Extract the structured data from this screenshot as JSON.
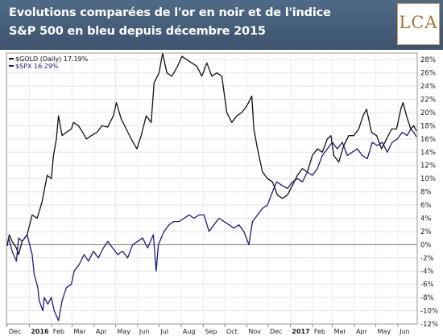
{
  "header": {
    "title_line1": "Evolutions comparées de l'or en noir et de l'indice",
    "title_line2": "S&P 500 en bleu depuis décembre 2015",
    "logo_text": "LCA"
  },
  "colors": {
    "header_bg": "#46607d",
    "gold_line": "#111111",
    "spx_line": "#1c1c7a",
    "logo_color": "#a07a38"
  },
  "chart_data": {
    "type": "line",
    "y_unit": "%",
    "ylim": [
      -12,
      29
    ],
    "yticks": [
      -12,
      -10,
      -8,
      -6,
      -4,
      -2,
      0,
      2,
      4,
      6,
      8,
      10,
      12,
      14,
      16,
      18,
      20,
      22,
      24,
      26,
      28
    ],
    "ytick_labels": [
      "-12%",
      "-10%",
      "-8%",
      "-6%",
      "-4%",
      "-2%",
      "0%",
      "2%",
      "4%",
      "6%",
      "8%",
      "10%",
      "12%",
      "14%",
      "16%",
      "18%",
      "20%",
      "22%",
      "24%",
      "26%",
      "28%"
    ],
    "xlim": [
      "2015-11-30",
      "2017-06-28"
    ],
    "x_ticks": [
      {
        "date": "2015-12-01",
        "label": "Dec",
        "bold": false
      },
      {
        "date": "2016-01-01",
        "label": "2016",
        "bold": true
      },
      {
        "date": "2016-02-01",
        "label": "Feb",
        "bold": false
      },
      {
        "date": "2016-03-01",
        "label": "Mar",
        "bold": false
      },
      {
        "date": "2016-04-01",
        "label": "Apr",
        "bold": false
      },
      {
        "date": "2016-05-01",
        "label": "May",
        "bold": false
      },
      {
        "date": "2016-06-01",
        "label": "Jun",
        "bold": false
      },
      {
        "date": "2016-07-01",
        "label": "Jul",
        "bold": false
      },
      {
        "date": "2016-08-01",
        "label": "Aug",
        "bold": false
      },
      {
        "date": "2016-09-01",
        "label": "Sep",
        "bold": false
      },
      {
        "date": "2016-10-01",
        "label": "Oct",
        "bold": false
      },
      {
        "date": "2016-11-01",
        "label": "Nov",
        "bold": false
      },
      {
        "date": "2016-12-01",
        "label": "Dec",
        "bold": false
      },
      {
        "date": "2017-01-01",
        "label": "2017",
        "bold": true
      },
      {
        "date": "2017-02-01",
        "label": "Feb",
        "bold": false
      },
      {
        "date": "2017-03-01",
        "label": "Mar",
        "bold": false
      },
      {
        "date": "2017-04-01",
        "label": "Apr",
        "bold": false
      },
      {
        "date": "2017-05-01",
        "label": "May",
        "bold": false
      },
      {
        "date": "2017-06-01",
        "label": "Jun",
        "bold": false
      }
    ],
    "zero_line": 0,
    "grid": true,
    "legend_position": "top-left",
    "series": [
      {
        "name": "$GOLD (Daily) 17.19%",
        "color": "#111111",
        "points": [
          [
            "2015-12-01",
            -0.2
          ],
          [
            "2015-12-04",
            1.5
          ],
          [
            "2015-12-08",
            0.5
          ],
          [
            "2015-12-14",
            -0.5
          ],
          [
            "2015-12-17",
            -1.5
          ],
          [
            "2015-12-22",
            0.5
          ],
          [
            "2015-12-29",
            1.5
          ],
          [
            "2016-01-05",
            4.5
          ],
          [
            "2016-01-12",
            4.0
          ],
          [
            "2016-01-19",
            6.5
          ],
          [
            "2016-01-26",
            10.5
          ],
          [
            "2016-02-01",
            10.0
          ],
          [
            "2016-02-04",
            13.5
          ],
          [
            "2016-02-08",
            16.0
          ],
          [
            "2016-02-11",
            19.5
          ],
          [
            "2016-02-16",
            16.5
          ],
          [
            "2016-02-22",
            17.0
          ],
          [
            "2016-02-29",
            17.5
          ],
          [
            "2016-03-03",
            18.5
          ],
          [
            "2016-03-10",
            18.0
          ],
          [
            "2016-03-16",
            17.0
          ],
          [
            "2016-03-21",
            16.0
          ],
          [
            "2016-03-28",
            16.5
          ],
          [
            "2016-04-05",
            17.0
          ],
          [
            "2016-04-12",
            18.0
          ],
          [
            "2016-04-20",
            17.8
          ],
          [
            "2016-04-28",
            19.5
          ],
          [
            "2016-05-02",
            21.5
          ],
          [
            "2016-05-09",
            19.0
          ],
          [
            "2016-05-16",
            17.5
          ],
          [
            "2016-05-23",
            16.0
          ],
          [
            "2016-05-31",
            14.5
          ],
          [
            "2016-06-06",
            16.5
          ],
          [
            "2016-06-13",
            19.5
          ],
          [
            "2016-06-20",
            18.5
          ],
          [
            "2016-06-24",
            24.5
          ],
          [
            "2016-07-01",
            26.0
          ],
          [
            "2016-07-06",
            29.0
          ],
          [
            "2016-07-12",
            26.0
          ],
          [
            "2016-07-19",
            25.5
          ],
          [
            "2016-07-27",
            27.0
          ],
          [
            "2016-08-02",
            28.5
          ],
          [
            "2016-08-09",
            28.0
          ],
          [
            "2016-08-16",
            27.5
          ],
          [
            "2016-08-23",
            27.0
          ],
          [
            "2016-08-30",
            25.5
          ],
          [
            "2016-09-06",
            27.5
          ],
          [
            "2016-09-13",
            25.5
          ],
          [
            "2016-09-20",
            26.0
          ],
          [
            "2016-09-27",
            25.5
          ],
          [
            "2016-10-04",
            20.0
          ],
          [
            "2016-10-11",
            18.5
          ],
          [
            "2016-10-18",
            19.5
          ],
          [
            "2016-10-25",
            20.0
          ],
          [
            "2016-11-01",
            21.0
          ],
          [
            "2016-11-08",
            22.5
          ],
          [
            "2016-11-11",
            17.5
          ],
          [
            "2016-11-16",
            14.5
          ],
          [
            "2016-11-23",
            11.0
          ],
          [
            "2016-11-30",
            10.0
          ],
          [
            "2016-12-07",
            9.5
          ],
          [
            "2016-12-14",
            7.5
          ],
          [
            "2016-12-21",
            7.0
          ],
          [
            "2016-12-28",
            7.5
          ],
          [
            "2017-01-04",
            9.0
          ],
          [
            "2017-01-11",
            10.5
          ],
          [
            "2017-01-18",
            11.5
          ],
          [
            "2017-01-25",
            11.0
          ],
          [
            "2017-02-01",
            13.5
          ],
          [
            "2017-02-08",
            14.5
          ],
          [
            "2017-02-15",
            14.0
          ],
          [
            "2017-02-22",
            16.0
          ],
          [
            "2017-02-27",
            16.5
          ],
          [
            "2017-03-03",
            13.5
          ],
          [
            "2017-03-10",
            12.5
          ],
          [
            "2017-03-17",
            15.0
          ],
          [
            "2017-03-24",
            16.5
          ],
          [
            "2017-03-31",
            16.5
          ],
          [
            "2017-04-07",
            17.5
          ],
          [
            "2017-04-13",
            19.5
          ],
          [
            "2017-04-18",
            20.5
          ],
          [
            "2017-04-25",
            17.0
          ],
          [
            "2017-05-02",
            16.5
          ],
          [
            "2017-05-09",
            14.5
          ],
          [
            "2017-05-16",
            16.0
          ],
          [
            "2017-05-23",
            17.5
          ],
          [
            "2017-05-30",
            17.5
          ],
          [
            "2017-06-05",
            20.5
          ],
          [
            "2017-06-08",
            21.5
          ],
          [
            "2017-06-13",
            19.5
          ],
          [
            "2017-06-19",
            17.5
          ],
          [
            "2017-06-23",
            18.0
          ],
          [
            "2017-06-27",
            17.2
          ]
        ]
      },
      {
        "name": "$SPX 16.29%",
        "color": "#1c1c7a",
        "points": [
          [
            "2015-12-01",
            0.0
          ],
          [
            "2015-12-03",
            1.0
          ],
          [
            "2015-12-08",
            -1.0
          ],
          [
            "2015-12-14",
            -2.5
          ],
          [
            "2015-12-17",
            1.0
          ],
          [
            "2015-12-22",
            0.5
          ],
          [
            "2015-12-29",
            1.5
          ],
          [
            "2016-01-05",
            -1.5
          ],
          [
            "2016-01-08",
            -4.5
          ],
          [
            "2016-01-13",
            -6.5
          ],
          [
            "2016-01-15",
            -8.5
          ],
          [
            "2016-01-20",
            -10.0
          ],
          [
            "2016-01-22",
            -8.0
          ],
          [
            "2016-01-27",
            -9.0
          ],
          [
            "2016-02-01",
            -8.0
          ],
          [
            "2016-02-05",
            -10.0
          ],
          [
            "2016-02-11",
            -11.5
          ],
          [
            "2016-02-16",
            -8.5
          ],
          [
            "2016-02-22",
            -6.5
          ],
          [
            "2016-02-29",
            -6.0
          ],
          [
            "2016-03-04",
            -4.0
          ],
          [
            "2016-03-11",
            -3.0
          ],
          [
            "2016-03-18",
            -1.5
          ],
          [
            "2016-03-24",
            -2.5
          ],
          [
            "2016-03-31",
            -1.0
          ],
          [
            "2016-04-07",
            -2.0
          ],
          [
            "2016-04-14",
            -0.5
          ],
          [
            "2016-04-20",
            0.5
          ],
          [
            "2016-04-27",
            -0.5
          ],
          [
            "2016-05-04",
            -1.5
          ],
          [
            "2016-05-11",
            -1.0
          ],
          [
            "2016-05-18",
            -2.0
          ],
          [
            "2016-05-25",
            0.0
          ],
          [
            "2016-06-01",
            0.5
          ],
          [
            "2016-06-08",
            1.0
          ],
          [
            "2016-06-15",
            -0.5
          ],
          [
            "2016-06-23",
            1.5
          ],
          [
            "2016-06-27",
            -4.0
          ],
          [
            "2016-06-30",
            0.0
          ],
          [
            "2016-07-08",
            2.0
          ],
          [
            "2016-07-15",
            3.0
          ],
          [
            "2016-07-22",
            3.5
          ],
          [
            "2016-07-29",
            3.5
          ],
          [
            "2016-08-05",
            4.0
          ],
          [
            "2016-08-12",
            4.5
          ],
          [
            "2016-08-19",
            4.0
          ],
          [
            "2016-08-26",
            4.5
          ],
          [
            "2016-09-02",
            4.5
          ],
          [
            "2016-09-09",
            2.0
          ],
          [
            "2016-09-16",
            3.0
          ],
          [
            "2016-09-23",
            4.0
          ],
          [
            "2016-09-30",
            3.5
          ],
          [
            "2016-10-07",
            3.0
          ],
          [
            "2016-10-14",
            2.5
          ],
          [
            "2016-10-21",
            3.0
          ],
          [
            "2016-10-28",
            2.0
          ],
          [
            "2016-11-04",
            0.0
          ],
          [
            "2016-11-09",
            3.5
          ],
          [
            "2016-11-16",
            4.5
          ],
          [
            "2016-11-23",
            5.5
          ],
          [
            "2016-11-30",
            6.0
          ],
          [
            "2016-12-07",
            8.0
          ],
          [
            "2016-12-13",
            9.5
          ],
          [
            "2016-12-20",
            9.0
          ],
          [
            "2016-12-28",
            8.5
          ],
          [
            "2017-01-04",
            9.5
          ],
          [
            "2017-01-11",
            10.0
          ],
          [
            "2017-01-18",
            9.5
          ],
          [
            "2017-01-25",
            11.0
          ],
          [
            "2017-02-01",
            10.5
          ],
          [
            "2017-02-08",
            11.5
          ],
          [
            "2017-02-15",
            13.5
          ],
          [
            "2017-02-22",
            14.5
          ],
          [
            "2017-03-01",
            15.5
          ],
          [
            "2017-03-08",
            14.5
          ],
          [
            "2017-03-15",
            15.5
          ],
          [
            "2017-03-22",
            13.5
          ],
          [
            "2017-03-29",
            14.0
          ],
          [
            "2017-04-05",
            14.5
          ],
          [
            "2017-04-12",
            13.5
          ],
          [
            "2017-04-19",
            13.0
          ],
          [
            "2017-04-26",
            15.5
          ],
          [
            "2017-05-03",
            15.0
          ],
          [
            "2017-05-10",
            15.5
          ],
          [
            "2017-05-17",
            14.0
          ],
          [
            "2017-05-24",
            15.5
          ],
          [
            "2017-05-31",
            16.0
          ],
          [
            "2017-06-07",
            17.0
          ],
          [
            "2017-06-14",
            16.5
          ],
          [
            "2017-06-19",
            17.5
          ],
          [
            "2017-06-23",
            17.0
          ],
          [
            "2017-06-27",
            16.3
          ]
        ]
      }
    ]
  }
}
